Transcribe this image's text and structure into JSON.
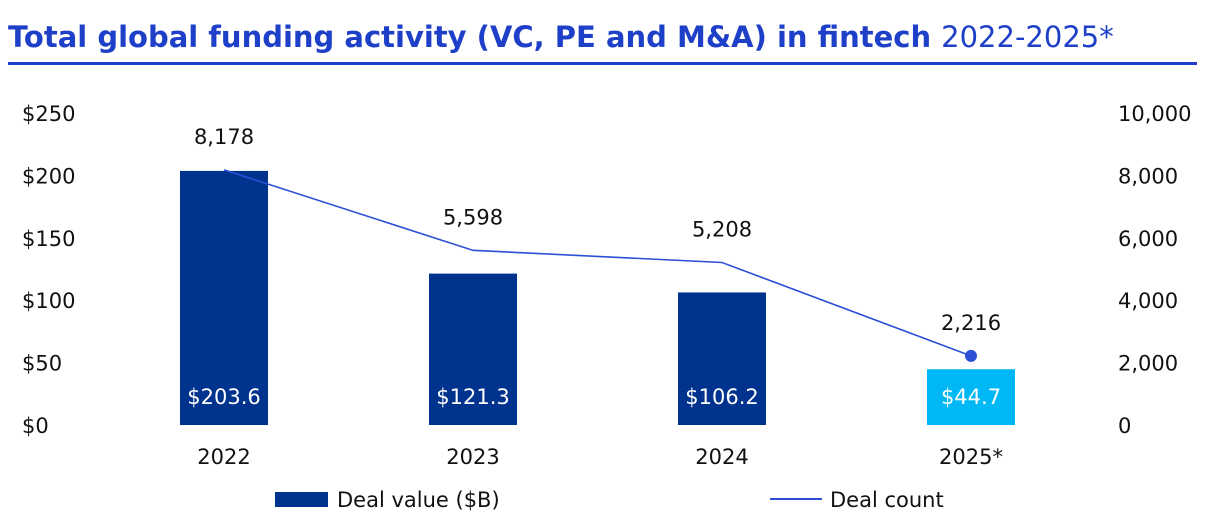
{
  "chart_data": {
    "type": "bar",
    "title": "Total global funding activity (VC, PE and M&A) in fintech",
    "subtitle": "2022-2025*",
    "categories": [
      "2022",
      "2023",
      "2024",
      "2025*"
    ],
    "series": [
      {
        "name": "Deal value ($B)",
        "type": "bar",
        "axis": "left",
        "values": [
          203.6,
          121.3,
          106.2,
          44.7
        ],
        "labels": [
          "$203.6",
          "$121.3",
          "$106.2",
          "$44.7"
        ],
        "colors": [
          "#00338d",
          "#00338d",
          "#00338d",
          "#00b8f5"
        ]
      },
      {
        "name": "Deal count",
        "type": "line",
        "axis": "right",
        "values": [
          8178,
          5598,
          5208,
          2216
        ],
        "labels": [
          "8,178",
          "5,598",
          "5,208",
          "2,216"
        ],
        "color": "#2d4fd6"
      }
    ],
    "left_axis": {
      "ylim": [
        0,
        250
      ],
      "ticks": [
        0,
        50,
        100,
        150,
        200,
        250
      ],
      "tick_labels": [
        "$0",
        "$50",
        "$100",
        "$150",
        "$200",
        "$250"
      ]
    },
    "right_axis": {
      "ylim": [
        0,
        10000
      ],
      "ticks": [
        0,
        2000,
        4000,
        6000,
        8000,
        10000
      ],
      "tick_labels": [
        "0",
        "2,000",
        "4,000",
        "6,000",
        "8,000",
        "10,000"
      ]
    },
    "grid": false,
    "legend": "bottom",
    "title_color": "#1e40c8"
  }
}
